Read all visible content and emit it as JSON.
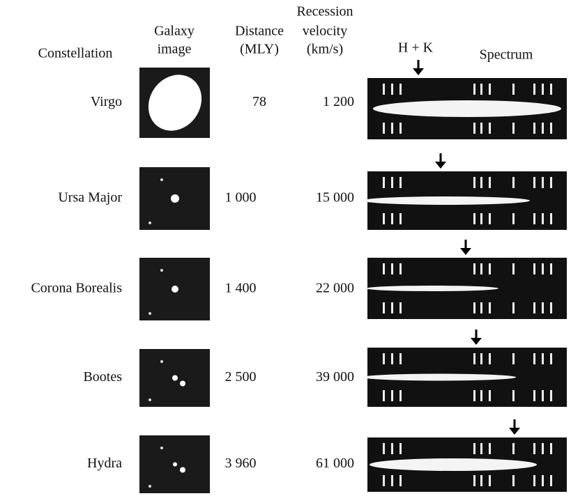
{
  "header": {
    "constellation": "Constellation",
    "galaxy_image": [
      "Galaxy",
      "image"
    ],
    "distance": [
      "Distance",
      "(MLY)"
    ],
    "velocity": [
      "Recession",
      "velocity",
      "(km/s)"
    ],
    "hk": "H + K",
    "spectrum": "Spectrum"
  },
  "rows": [
    {
      "constellation": "Virgo",
      "distance": "78",
      "velocity": "1 200"
    },
    {
      "constellation": "Ursa Major",
      "distance": "1 000",
      "velocity": "15 000"
    },
    {
      "constellation": "Corona Borealis",
      "distance": "1 400",
      "velocity": "22 000"
    },
    {
      "constellation": "Bootes",
      "distance": "2 500",
      "velocity": "39 000"
    },
    {
      "constellation": "Hydra",
      "distance": "3 960",
      "velocity": "61 000"
    }
  ]
}
